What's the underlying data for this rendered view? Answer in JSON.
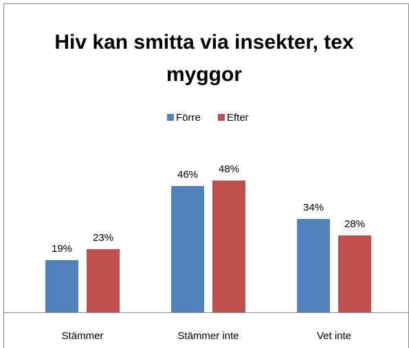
{
  "chart_data": {
    "type": "bar",
    "title": "Hiv kan smitta via insekter, tex myggor",
    "categories": [
      "Stämmer",
      "Stämmer inte",
      "Vet inte"
    ],
    "series": [
      {
        "name": "Förre",
        "color": "#4f81bd",
        "values": [
          19,
          46,
          34
        ],
        "value_labels": [
          "19%",
          "46%",
          "34%"
        ]
      },
      {
        "name": "Efter",
        "color": "#c0504d",
        "values": [
          23,
          48,
          28
        ],
        "value_labels": [
          "23%",
          "48%",
          "28%"
        ]
      }
    ]
  }
}
